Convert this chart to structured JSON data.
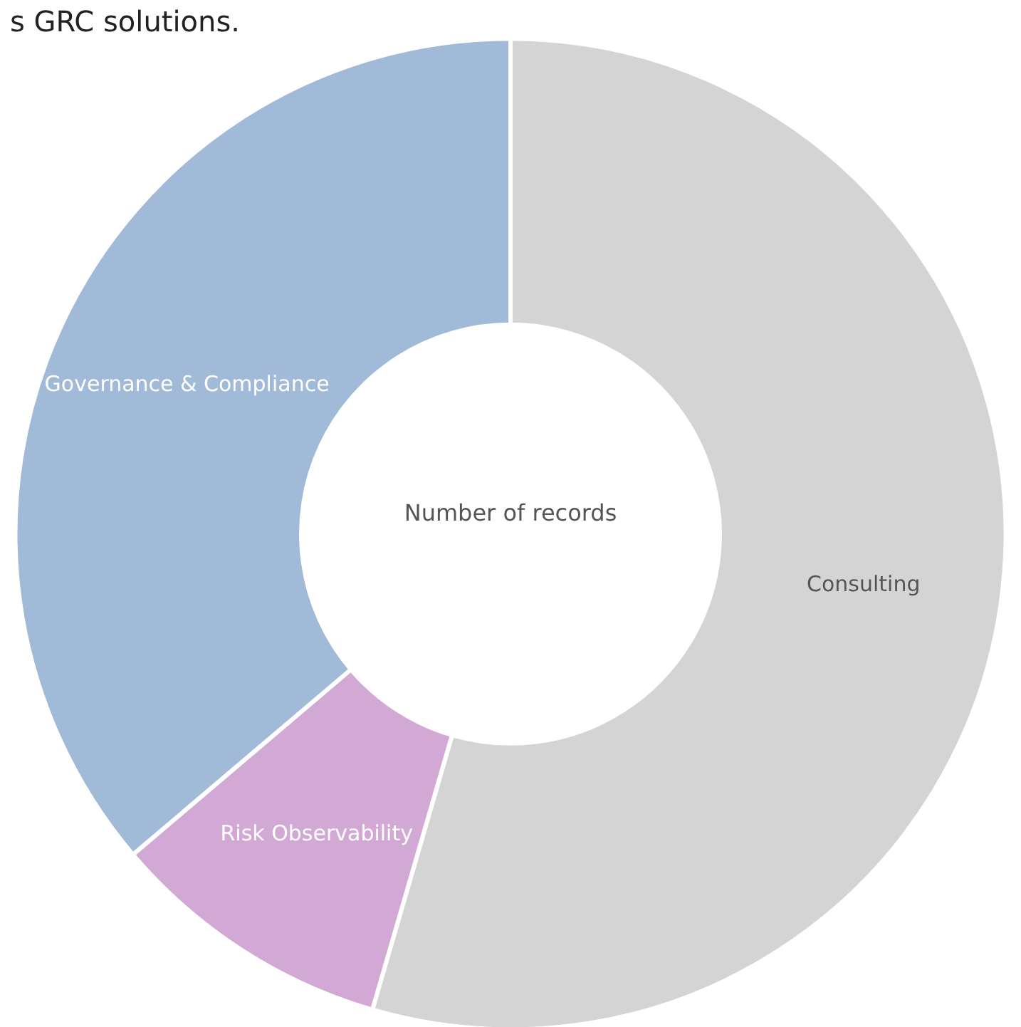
{
  "chart_data": {
    "type": "donut",
    "title": "s GRC solutions.",
    "categories": [
      "Consulting",
      "Risk Observability",
      "Governance & Compliance"
    ],
    "values": [
      54.5,
      9.3,
      36.2
    ],
    "colors": [
      "#d4d4d4",
      "#d2a9d4",
      "#a1bad8"
    ],
    "annotations": [
      "Number of records"
    ],
    "legend": false
  }
}
